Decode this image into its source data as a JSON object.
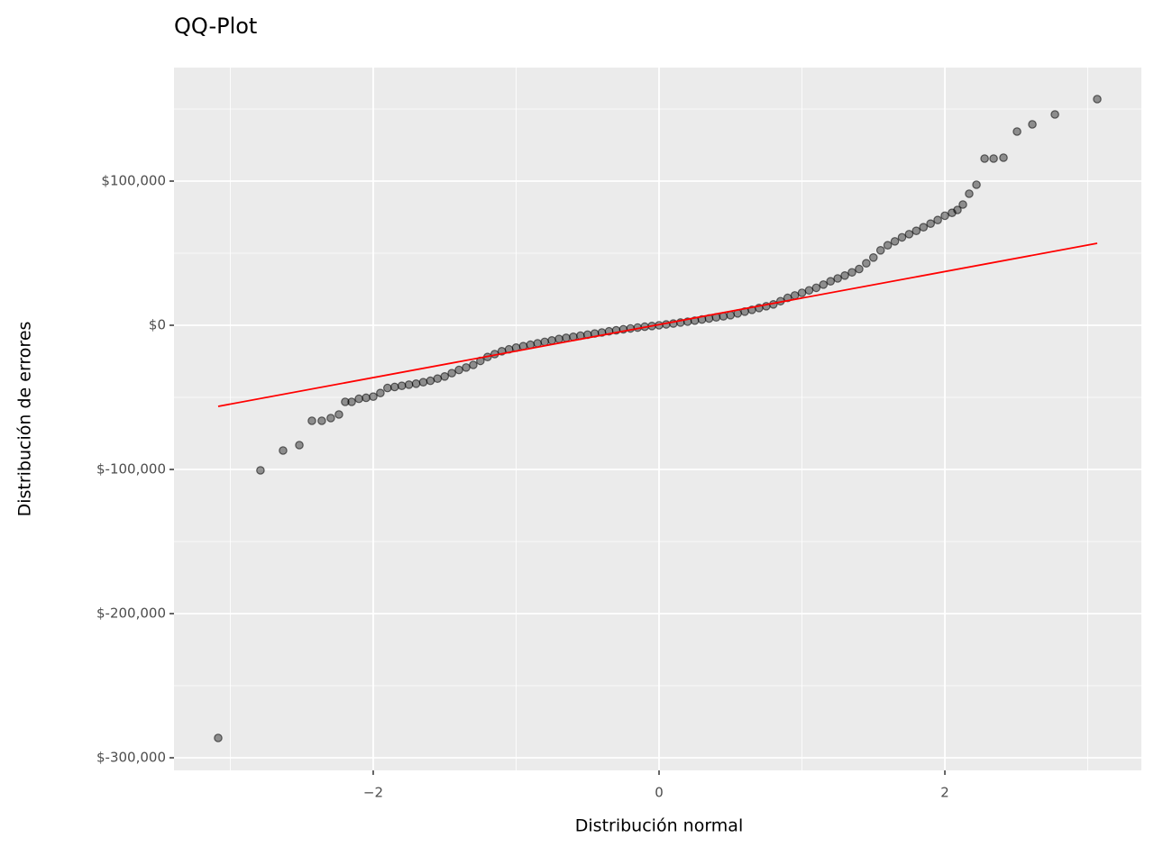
{
  "chart_data": {
    "type": "scatter",
    "title": "QQ-Plot",
    "x_label": "Distribución normal",
    "y_label": "Distribución de errores",
    "xlim": [
      -3.394,
      3.375
    ],
    "ylim": [
      -308750,
      178750
    ],
    "xticks": [
      {
        "value": -2,
        "label": "−2"
      },
      0,
      2
    ],
    "yticks": [
      {
        "value": -300000,
        "label": "$-300,000"
      },
      {
        "value": -200000,
        "label": "$-200,000"
      },
      {
        "value": -100000,
        "label": "$-100,000"
      },
      {
        "value": 0,
        "label": "$0"
      },
      {
        "value": 100000,
        "label": "$100,000"
      }
    ],
    "x_minor_ticks": [
      -3,
      -1,
      1,
      3
    ],
    "y_minor_ticks": [
      -250000,
      -150000,
      -50000,
      50000,
      150000
    ],
    "grid": true,
    "series": [
      {
        "color": "#000000",
        "alpha": 0.4,
        "x": [
          -3.085,
          -2.789,
          -2.631,
          -2.517,
          -2.429,
          -2.36,
          -2.297,
          -2.24,
          -2.196,
          -2.151,
          -2.1,
          -2.05,
          -2.0,
          -1.95,
          -1.9,
          -1.85,
          -1.8,
          -1.75,
          -1.7,
          -1.65,
          -1.6,
          -1.55,
          -1.5,
          -1.45,
          -1.4,
          -1.35,
          -1.3,
          -1.25,
          -1.2,
          -1.15,
          -1.1,
          -1.05,
          -1.0,
          -0.95,
          -0.9,
          -0.85,
          -0.8,
          -0.75,
          -0.7,
          -0.65,
          -0.6,
          -0.55,
          -0.5,
          -0.45,
          -0.4,
          -0.35,
          -0.3,
          -0.25,
          -0.2,
          -0.15,
          -0.1,
          -0.05,
          0,
          0.05,
          0.1,
          0.15,
          0.2,
          0.25,
          0.3,
          0.35,
          0.4,
          0.45,
          0.5,
          0.55,
          0.6,
          0.65,
          0.7,
          0.75,
          0.8,
          0.85,
          0.9,
          0.95,
          1.0,
          1.05,
          1.1,
          1.15,
          1.2,
          1.25,
          1.3,
          1.35,
          1.4,
          1.45,
          1.5,
          1.55,
          1.6,
          1.65,
          1.7,
          1.75,
          1.8,
          1.85,
          1.9,
          1.95,
          2.0,
          2.05,
          2.088,
          2.126,
          2.17,
          2.221,
          2.278,
          2.341,
          2.41,
          2.505,
          2.612,
          2.77,
          3.066
        ],
        "y": [
          -286250,
          -100625,
          -86875,
          -83125,
          -66250,
          -66250,
          -64375,
          -61875,
          -53125,
          -53125,
          -51000,
          -50300,
          -49500,
          -47000,
          -43500,
          -42800,
          -42000,
          -41200,
          -40500,
          -39500,
          -38500,
          -37000,
          -35500,
          -33200,
          -31000,
          -29300,
          -27500,
          -24700,
          -22000,
          -20000,
          -18000,
          -16700,
          -15500,
          -14500,
          -13500,
          -12500,
          -11500,
          -10500,
          -9500,
          -8700,
          -8000,
          -7200,
          -6500,
          -5700,
          -5000,
          -4200,
          -3500,
          -2800,
          -2200,
          -1600,
          -1000,
          -500,
          0,
          600,
          1200,
          1900,
          2500,
          3200,
          4000,
          4700,
          5500,
          6200,
          7000,
          8200,
          9500,
          10700,
          12000,
          13200,
          14500,
          16700,
          19000,
          20700,
          22500,
          24200,
          26000,
          28200,
          30500,
          32500,
          34500,
          36700,
          39000,
          43000,
          47000,
          52000,
          55500,
          58200,
          61000,
          63200,
          65500,
          68000,
          70500,
          73000,
          76000,
          78000,
          80000,
          83750,
          91250,
          97500,
          115625,
          115625,
          116250,
          134375,
          139375,
          146250,
          156875
        ]
      }
    ],
    "reference_line": {
      "x": [
        -3.085,
        3.066
      ],
      "y": [
        -56250,
        56875
      ],
      "color": "#ff0000"
    }
  }
}
